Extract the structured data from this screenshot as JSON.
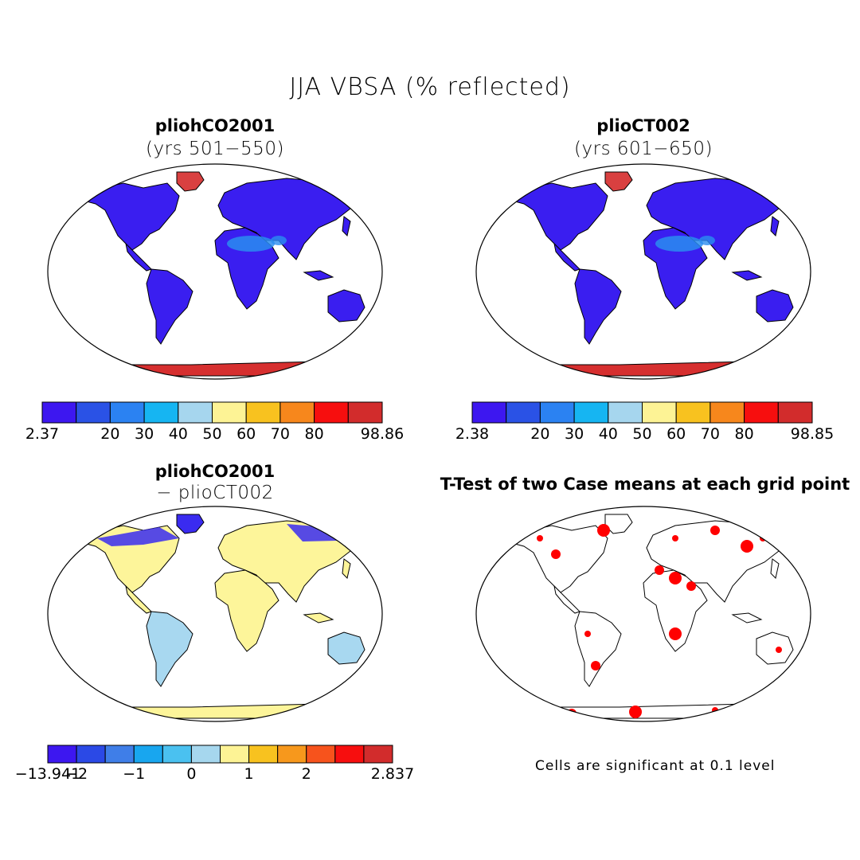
{
  "figure": {
    "title": "JJA VBSA (% reflected)"
  },
  "colors": {
    "ocean": "#ffffff",
    "outline": "#000000",
    "antarctica": "#d62f2f",
    "greenland": "#d94040",
    "significant": "#ff0000",
    "land_abs": "#3a1ef0",
    "land_abs_desert": "#2a8df0",
    "land_diff": "#fdf59a",
    "land_diff_blue": "#a8d8f0",
    "land_diff_arctic": "#3a2bf0"
  },
  "panels": [
    {
      "title": "pliohCO2001",
      "subtitle": "(yrs 501−550)"
    },
    {
      "title": "plioCT002",
      "subtitle": "(yrs 601−650)"
    },
    {
      "title": "pliohCO2001",
      "subtitle": "− plioCT002"
    },
    {
      "title": "T-Test of two Case means at each grid point",
      "subtitle": ""
    }
  ],
  "colorbars": [
    {
      "name": "colorbar-1",
      "colors": [
        "#3d17f0",
        "#2a52e6",
        "#2b82f2",
        "#16b5f2",
        "#a6d6ee",
        "#fdf395",
        "#f8c21f",
        "#f7871c",
        "#f70e0e",
        "#d22c2c"
      ],
      "labels": [
        "2.37",
        "",
        "20",
        "30",
        "40",
        "50",
        "60",
        "70",
        "80",
        "",
        "98.86"
      ]
    },
    {
      "name": "colorbar-2",
      "colors": [
        "#3d17f0",
        "#2a52e6",
        "#2b82f2",
        "#16b5f2",
        "#a6d6ee",
        "#fdf395",
        "#f8c21f",
        "#f7871c",
        "#f70e0e",
        "#d22c2c"
      ],
      "labels": [
        "2.38",
        "",
        "20",
        "30",
        "40",
        "50",
        "60",
        "70",
        "80",
        "",
        "98.85"
      ]
    },
    {
      "name": "colorbar-3",
      "colors": [
        "#3d17f0",
        "#2b49e6",
        "#3f7ee8",
        "#18a6ef",
        "#4ac1f0",
        "#a6d7ee",
        "#fdf395",
        "#f8c21f",
        "#f7981c",
        "#f7531c",
        "#f70e0e",
        "#d22c2c"
      ],
      "labels": [
        "−13.941",
        "−2",
        "",
        "−1",
        "",
        "0",
        "",
        "1",
        "",
        "2",
        "",
        "",
        "2.837"
      ]
    }
  ],
  "footnote": "Cells are significant at 0.1 level"
}
